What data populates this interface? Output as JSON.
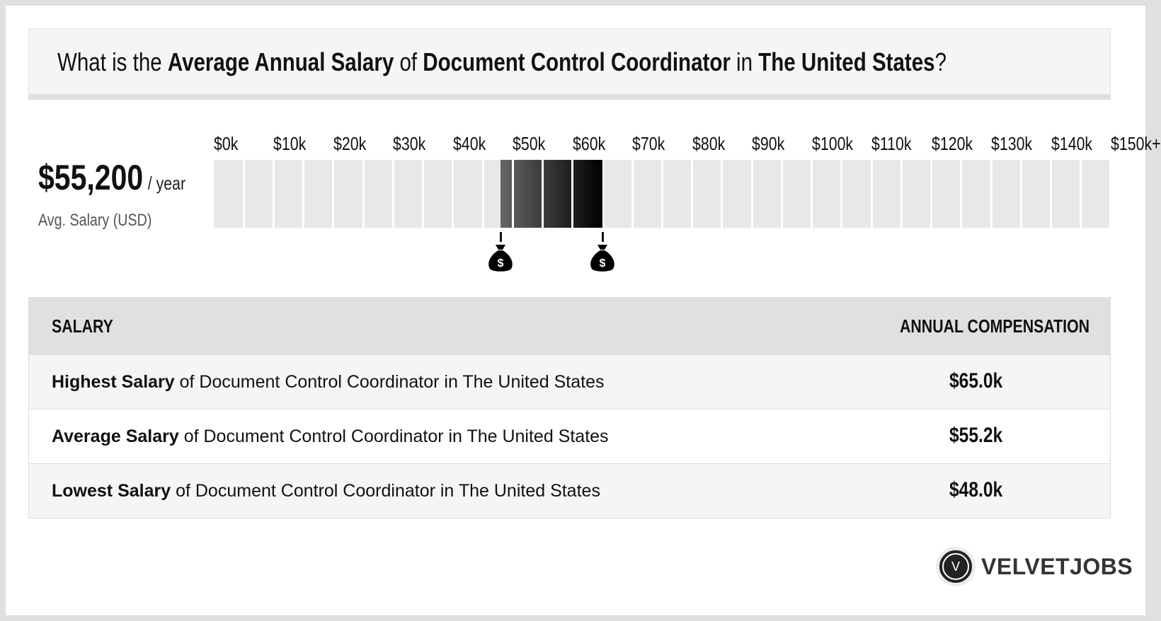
{
  "header": {
    "parts": [
      "What is the ",
      "Average Annual Salary",
      " of ",
      "Document Control Coordinator",
      " in ",
      "The United States",
      "?"
    ]
  },
  "summary": {
    "amount": "$55,200",
    "period": "/ year",
    "label": "Avg. Salary (USD)"
  },
  "chart_data": {
    "type": "range-bar",
    "tick_labels": [
      "$0k",
      "$10k",
      "$20k",
      "$30k",
      "$40k",
      "$50k",
      "$60k",
      "$70k",
      "$80k",
      "$90k",
      "$100k",
      "$110k",
      "$120k",
      "$130k",
      "$140k",
      "$150k+"
    ],
    "xlim": [
      0,
      150
    ],
    "segment_size": 5,
    "low": 48.0,
    "average": 55.2,
    "high": 65.0,
    "unit": "$k",
    "colors": {
      "empty": "#e8e8e8",
      "fill_start": "#666666",
      "fill_end": "#000000"
    }
  },
  "markers": [
    {
      "icon": "money-bag-icon",
      "glyph": "$",
      "value": 48.0
    },
    {
      "icon": "money-bag-icon",
      "glyph": "$",
      "value": 65.0
    }
  ],
  "table": {
    "headers": [
      "SALARY",
      "ANNUAL COMPENSATION"
    ],
    "rows": [
      {
        "bold": "Highest Salary",
        "rest": " of Document Control Coordinator in The United States",
        "value": "$65.0k"
      },
      {
        "bold": "Average Salary",
        "rest": " of Document Control Coordinator in The United States",
        "value": "$55.2k"
      },
      {
        "bold": "Lowest Salary",
        "rest": " of Document Control Coordinator in The United States",
        "value": "$48.0k"
      }
    ]
  },
  "logo": {
    "letter": "V",
    "text": "VELVETJOBS"
  }
}
